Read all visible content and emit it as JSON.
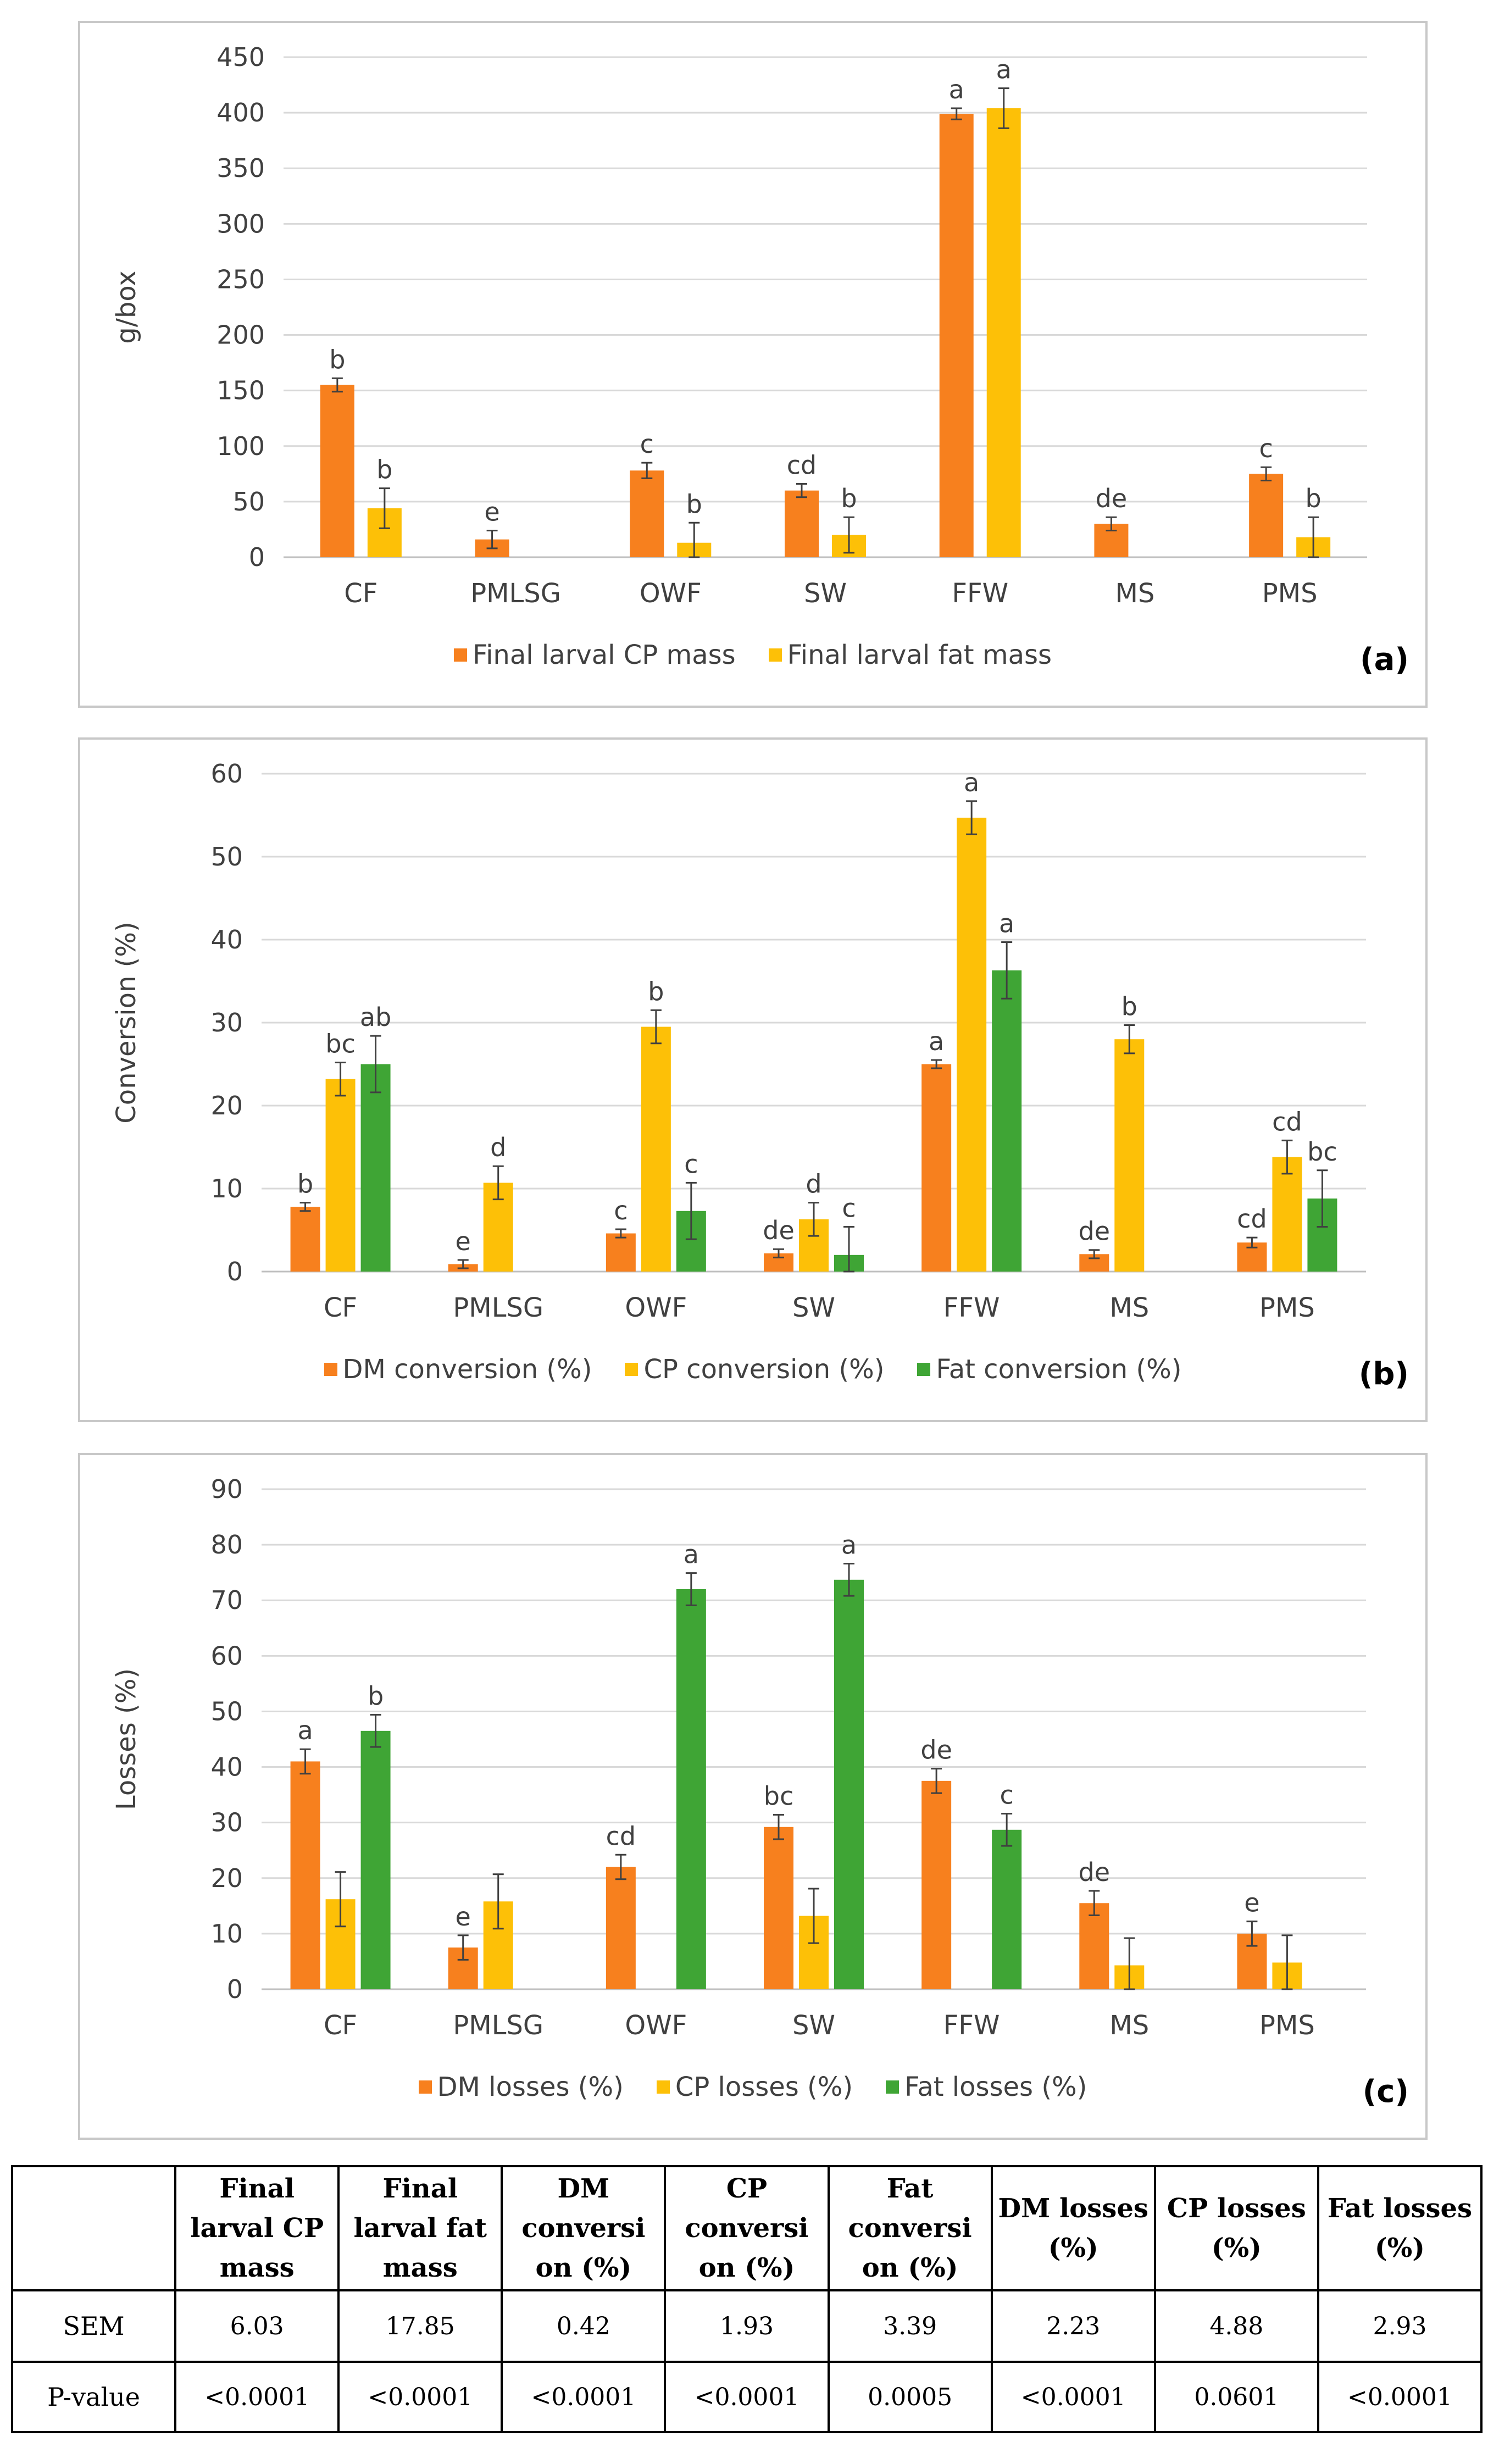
{
  "colors": {
    "orange": "#F7801E",
    "yellow": "#FDC007",
    "green": "#3FA535",
    "axis": "#404040",
    "grid": "#d9d9d9"
  },
  "chart_data": [
    {
      "id": "a",
      "type": "bar",
      "panel_label": "(a)",
      "ylabel": "g/box",
      "ylim": [
        0,
        450
      ],
      "yticks": [
        0,
        50,
        100,
        150,
        200,
        250,
        300,
        350,
        400,
        450
      ],
      "categories": [
        "CF",
        "PMLSG",
        "OWF",
        "SW",
        "FFW",
        "MS",
        "PMS"
      ],
      "legend_position": "bottom",
      "series": [
        {
          "name": "Final larval CP mass",
          "color": "#F7801E",
          "values": [
            155,
            16,
            78,
            60,
            399,
            30,
            75
          ],
          "errors": [
            6,
            8,
            7,
            6,
            5,
            6,
            6
          ],
          "letters": [
            "b",
            "e",
            "c",
            "cd",
            "a",
            "de",
            "c"
          ]
        },
        {
          "name": "Final larval fat mass",
          "color": "#FDC007",
          "values": [
            44,
            null,
            13,
            20,
            404,
            null,
            18
          ],
          "errors": [
            18,
            null,
            18,
            16,
            18,
            null,
            18
          ],
          "letters": [
            "b",
            "",
            "b",
            "b",
            "a",
            "",
            "b"
          ]
        }
      ]
    },
    {
      "id": "b",
      "type": "bar",
      "panel_label": "(b)",
      "ylabel": "Conversion (%)",
      "ylim": [
        0,
        60
      ],
      "yticks": [
        0,
        10,
        20,
        30,
        40,
        50,
        60
      ],
      "categories": [
        "CF",
        "PMLSG",
        "OWF",
        "SW",
        "FFW",
        "MS",
        "PMS"
      ],
      "legend_position": "bottom",
      "series": [
        {
          "name": "DM conversion (%)",
          "color": "#F7801E",
          "values": [
            7.8,
            0.9,
            4.6,
            2.2,
            25.0,
            2.1,
            3.5
          ],
          "errors": [
            0.5,
            0.5,
            0.5,
            0.5,
            0.5,
            0.5,
            0.6
          ],
          "letters": [
            "b",
            "e",
            "c",
            "de",
            "a",
            "de",
            "cd"
          ]
        },
        {
          "name": "CP conversion (%)",
          "color": "#FDC007",
          "values": [
            23.2,
            10.7,
            29.5,
            6.3,
            54.7,
            28.0,
            13.8
          ],
          "errors": [
            2.0,
            2.0,
            2.0,
            2.0,
            2.0,
            1.7,
            2.0
          ],
          "letters": [
            "bc",
            "d",
            "b",
            "d",
            "a",
            "b",
            "cd"
          ]
        },
        {
          "name": "Fat conversion (%)",
          "color": "#3FA535",
          "values": [
            25.0,
            null,
            7.3,
            2.0,
            36.3,
            null,
            8.8
          ],
          "errors": [
            3.4,
            null,
            3.4,
            3.4,
            3.4,
            null,
            3.4
          ],
          "letters": [
            "ab",
            "",
            "c",
            "c",
            "a",
            "",
            "bc"
          ]
        }
      ]
    },
    {
      "id": "c",
      "type": "bar",
      "panel_label": "(c)",
      "ylabel": "Losses (%)",
      "ylim": [
        0,
        90
      ],
      "yticks": [
        0,
        10,
        20,
        30,
        40,
        50,
        60,
        70,
        80,
        90
      ],
      "categories": [
        "CF",
        "PMLSG",
        "OWF",
        "SW",
        "FFW",
        "MS",
        "PMS"
      ],
      "legend_position": "bottom",
      "series": [
        {
          "name": "DM losses (%)",
          "color": "#F7801E",
          "values": [
            41.0,
            7.5,
            22.0,
            29.2,
            37.5,
            15.5,
            10.0
          ],
          "errors": [
            2.2,
            2.2,
            2.2,
            2.2,
            2.2,
            2.2,
            2.2
          ],
          "letters": [
            "a",
            "e",
            "cd",
            "bc",
            "de",
            "de",
            "e"
          ]
        },
        {
          "name": "CP losses (%)",
          "color": "#FDC007",
          "values": [
            16.2,
            15.8,
            null,
            13.2,
            null,
            4.3,
            4.8
          ],
          "errors": [
            4.9,
            4.9,
            null,
            4.9,
            null,
            4.9,
            4.9
          ],
          "letters": [
            "",
            "",
            "",
            "",
            "",
            "",
            ""
          ]
        },
        {
          "name": "Fat losses (%)",
          "color": "#3FA535",
          "values": [
            46.5,
            null,
            72.0,
            73.7,
            28.7,
            null,
            null
          ],
          "errors": [
            2.9,
            null,
            2.9,
            2.9,
            2.9,
            null,
            null
          ],
          "letters": [
            "b",
            "",
            "a",
            "a",
            "c",
            "",
            ""
          ]
        }
      ]
    }
  ],
  "table": {
    "headers": [
      "",
      "Final larval CP mass",
      "Final larval fat mass",
      "DM conversi on (%)",
      "CP conversi on (%)",
      "Fat conversi on (%)",
      "DM losses (%)",
      "CP losses (%)",
      "Fat losses (%)"
    ],
    "rows": [
      {
        "label": "SEM",
        "cells": [
          "6.03",
          "17.85",
          "0.42",
          "1.93",
          "3.39",
          "2.23",
          "4.88",
          "2.93"
        ]
      },
      {
        "label": "P-value",
        "cells": [
          "<0.0001",
          "<0.0001",
          "<0.0001",
          "<0.0001",
          "0.0005",
          "<0.0001",
          "0.0601",
          "<0.0001"
        ]
      }
    ]
  }
}
